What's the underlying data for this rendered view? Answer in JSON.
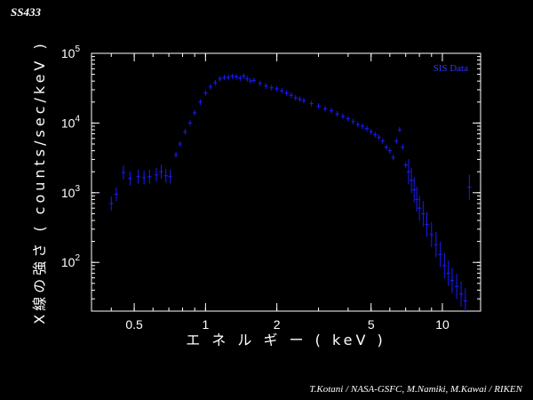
{
  "corner_title": "SS433",
  "credit": "T.Kotani / NASA-GSFC,   M.Namiki, M.Kawai / RIKEN",
  "colors": {
    "background": "#000000",
    "axes": "#ffffff",
    "data": "#1a1aff"
  },
  "chart_data": {
    "type": "scatter",
    "xscale": "log",
    "yscale": "log",
    "xlabel": "エ ネ ル ギ ー ( keV )",
    "ylabel": "X線の強さ ( counts/sec/keV )",
    "xlim": [
      0.33,
      14.5
    ],
    "ylim": [
      20,
      100000
    ],
    "xticks": [
      {
        "value": 0.5,
        "label": "0.5"
      },
      {
        "value": 1,
        "label": "1"
      },
      {
        "value": 2,
        "label": "2"
      },
      {
        "value": 5,
        "label": "5"
      },
      {
        "value": 10,
        "label": "10"
      }
    ],
    "yticks": [
      {
        "value": 100,
        "base": "10",
        "exp": "2"
      },
      {
        "value": 1000,
        "base": "10",
        "exp": "3"
      },
      {
        "value": 10000,
        "base": "10",
        "exp": "4"
      },
      {
        "value": 100000,
        "base": "10",
        "exp": "5"
      }
    ],
    "series": [
      {
        "name": "SIS Data",
        "points": [
          [
            0.4,
            700
          ],
          [
            0.42,
            950
          ],
          [
            0.45,
            1950
          ],
          [
            0.48,
            1600
          ],
          [
            0.52,
            1700
          ],
          [
            0.55,
            1650
          ],
          [
            0.58,
            1700
          ],
          [
            0.62,
            1800
          ],
          [
            0.65,
            2000
          ],
          [
            0.68,
            1750
          ],
          [
            0.71,
            1700
          ],
          [
            0.75,
            3500
          ],
          [
            0.78,
            5000
          ],
          [
            0.82,
            7500
          ],
          [
            0.86,
            10000
          ],
          [
            0.9,
            14000
          ],
          [
            0.95,
            20000
          ],
          [
            1.0,
            27000
          ],
          [
            1.05,
            33000
          ],
          [
            1.1,
            38000
          ],
          [
            1.15,
            43000
          ],
          [
            1.2,
            45000
          ],
          [
            1.25,
            45000
          ],
          [
            1.3,
            47000
          ],
          [
            1.35,
            46000
          ],
          [
            1.4,
            44000
          ],
          [
            1.45,
            47000
          ],
          [
            1.5,
            43000
          ],
          [
            1.55,
            40000
          ],
          [
            1.6,
            41000
          ],
          [
            1.7,
            37000
          ],
          [
            1.8,
            34000
          ],
          [
            1.9,
            32000
          ],
          [
            2.0,
            31000
          ],
          [
            2.1,
            29000
          ],
          [
            2.2,
            27000
          ],
          [
            2.3,
            25000
          ],
          [
            2.4,
            23000
          ],
          [
            2.5,
            22000
          ],
          [
            2.6,
            21000
          ],
          [
            2.8,
            19000
          ],
          [
            3.0,
            17500
          ],
          [
            3.2,
            16000
          ],
          [
            3.4,
            15000
          ],
          [
            3.6,
            13500
          ],
          [
            3.8,
            12500
          ],
          [
            4.0,
            11500
          ],
          [
            4.2,
            10500
          ],
          [
            4.4,
            9500
          ],
          [
            4.6,
            9000
          ],
          [
            4.8,
            8300
          ],
          [
            5.0,
            7500
          ],
          [
            5.2,
            6800
          ],
          [
            5.4,
            6200
          ],
          [
            5.6,
            5500
          ],
          [
            5.8,
            4500
          ],
          [
            6.0,
            4000
          ],
          [
            6.2,
            3200
          ],
          [
            6.4,
            5500
          ],
          [
            6.6,
            8000
          ],
          [
            6.8,
            4500
          ],
          [
            7.0,
            2500
          ],
          [
            7.2,
            2000
          ],
          [
            7.4,
            1500
          ],
          [
            7.6,
            1100
          ],
          [
            7.8,
            800
          ],
          [
            8.0,
            600
          ],
          [
            8.3,
            500
          ],
          [
            8.6,
            350
          ],
          [
            9.0,
            250
          ],
          [
            9.4,
            180
          ],
          [
            9.8,
            130
          ],
          [
            10.2,
            90
          ],
          [
            10.6,
            70
          ],
          [
            11.0,
            55
          ],
          [
            11.5,
            45
          ],
          [
            12.0,
            35
          ],
          [
            12.5,
            28
          ],
          [
            13.0,
            1200
          ]
        ]
      }
    ],
    "legend_position": "top-right"
  }
}
